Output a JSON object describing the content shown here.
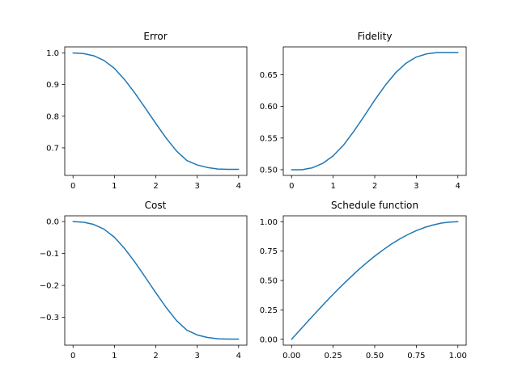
{
  "chart_data": [
    {
      "type": "line",
      "title": "Error",
      "xlabel": "",
      "ylabel": "",
      "xlim": [
        -0.2,
        4.2
      ],
      "ylim": [
        0.613,
        1.019
      ],
      "xticks": [
        0,
        1,
        2,
        3,
        4
      ],
      "xtick_labels": [
        "0",
        "1",
        "2",
        "3",
        "4"
      ],
      "yticks": [
        0.7,
        0.8,
        0.9,
        1.0
      ],
      "ytick_labels": [
        "0.7",
        "0.8",
        "0.9",
        "1.0"
      ],
      "grid": false,
      "series": [
        {
          "color": "#1f77b4",
          "x": [
            0,
            0.25,
            0.5,
            0.75,
            1.0,
            1.25,
            1.5,
            1.75,
            2.0,
            2.25,
            2.5,
            2.75,
            3.0,
            3.25,
            3.5,
            3.75,
            4.0
          ],
          "y": [
            1.0,
            0.998,
            0.991,
            0.976,
            0.951,
            0.915,
            0.872,
            0.825,
            0.777,
            0.731,
            0.69,
            0.66,
            0.646,
            0.638,
            0.633,
            0.632,
            0.632
          ]
        }
      ]
    },
    {
      "type": "line",
      "title": "Fidelity",
      "xlabel": "",
      "ylabel": "",
      "xlim": [
        -0.2,
        4.2
      ],
      "ylim": [
        0.491,
        0.694
      ],
      "xticks": [
        0,
        1,
        2,
        3,
        4
      ],
      "xtick_labels": [
        "0",
        "1",
        "2",
        "3",
        "4"
      ],
      "yticks": [
        0.5,
        0.55,
        0.6,
        0.65
      ],
      "ytick_labels": [
        "0.50",
        "0.55",
        "0.60",
        "0.65"
      ],
      "grid": false,
      "series": [
        {
          "color": "#1f77b4",
          "x": [
            0,
            0.25,
            0.5,
            0.75,
            1.0,
            1.25,
            1.5,
            1.75,
            2.0,
            2.25,
            2.5,
            2.75,
            3.0,
            3.25,
            3.5,
            3.75,
            4.0
          ],
          "y": [
            0.5,
            0.5,
            0.503,
            0.51,
            0.522,
            0.539,
            0.561,
            0.585,
            0.61,
            0.633,
            0.653,
            0.668,
            0.678,
            0.683,
            0.685,
            0.685,
            0.685
          ]
        }
      ]
    },
    {
      "type": "line",
      "title": "Cost",
      "xlabel": "",
      "ylabel": "",
      "xlim": [
        -0.2,
        4.2
      ],
      "ylim": [
        -0.387,
        0.018
      ],
      "xticks": [
        0,
        1,
        2,
        3,
        4
      ],
      "xtick_labels": [
        "0",
        "1",
        "2",
        "3",
        "4"
      ],
      "yticks": [
        0.0,
        -0.1,
        -0.2,
        -0.3
      ],
      "ytick_labels": [
        "0.0",
        "−0.1",
        "−0.2",
        "−0.3"
      ],
      "grid": false,
      "series": [
        {
          "color": "#1f77b4",
          "x": [
            0,
            0.25,
            0.5,
            0.75,
            1.0,
            1.25,
            1.5,
            1.75,
            2.0,
            2.25,
            2.5,
            2.75,
            3.0,
            3.25,
            3.5,
            3.75,
            4.0
          ],
          "y": [
            0.0,
            -0.002,
            -0.009,
            -0.024,
            -0.049,
            -0.085,
            -0.128,
            -0.175,
            -0.223,
            -0.269,
            -0.31,
            -0.34,
            -0.355,
            -0.363,
            -0.367,
            -0.368,
            -0.368
          ]
        }
      ]
    },
    {
      "type": "line",
      "title": "Schedule function",
      "xlabel": "",
      "ylabel": "",
      "xlim": [
        -0.05,
        1.05
      ],
      "ylim": [
        -0.05,
        1.05
      ],
      "xticks": [
        0.0,
        0.25,
        0.5,
        0.75,
        1.0
      ],
      "xtick_labels": [
        "0.00",
        "0.25",
        "0.50",
        "0.75",
        "1.00"
      ],
      "yticks": [
        0.0,
        0.25,
        0.5,
        0.75,
        1.0
      ],
      "ytick_labels": [
        "0.00",
        "0.25",
        "0.50",
        "0.75",
        "1.00"
      ],
      "grid": false,
      "series": [
        {
          "color": "#1f77b4",
          "x": [
            0,
            0.05,
            0.1,
            0.15,
            0.2,
            0.25,
            0.3,
            0.35,
            0.4,
            0.45,
            0.5,
            0.55,
            0.6,
            0.65,
            0.7,
            0.75,
            0.8,
            0.85,
            0.9,
            0.95,
            1.0
          ],
          "y": [
            0.0,
            0.078,
            0.156,
            0.233,
            0.309,
            0.383,
            0.454,
            0.522,
            0.588,
            0.649,
            0.707,
            0.76,
            0.809,
            0.853,
            0.891,
            0.924,
            0.951,
            0.972,
            0.988,
            0.997,
            1.0
          ]
        }
      ]
    }
  ]
}
